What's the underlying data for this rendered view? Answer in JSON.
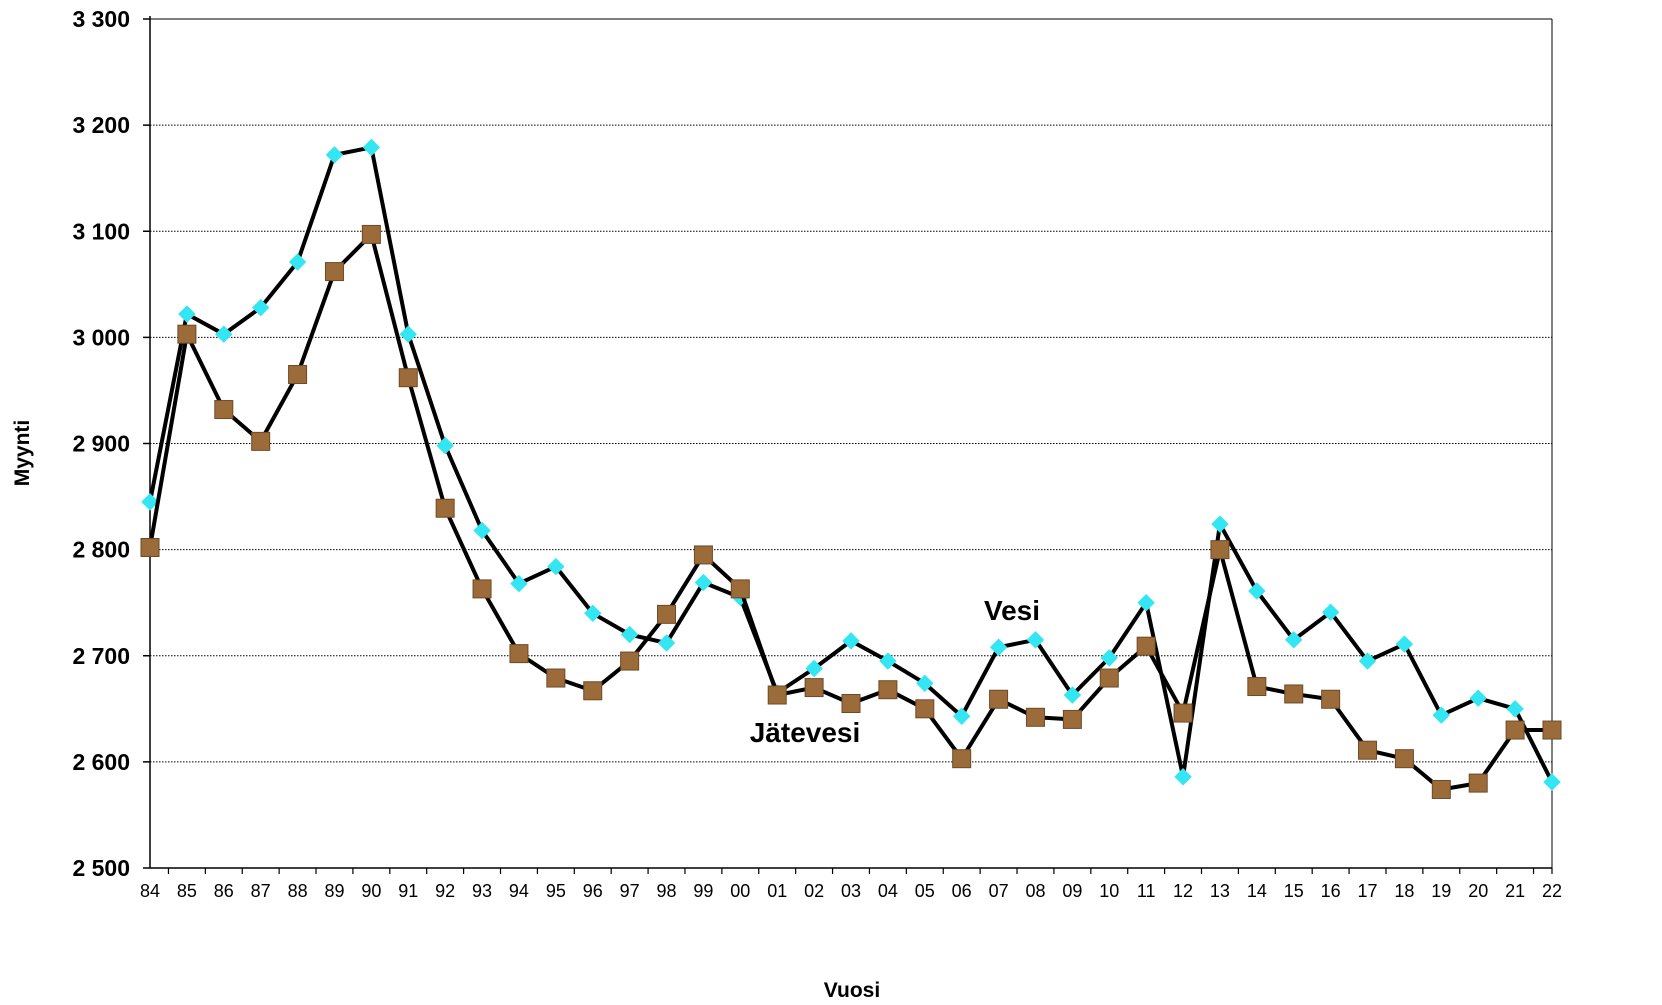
{
  "chart_data": {
    "type": "line",
    "title": "",
    "xlabel": "Vuosi",
    "ylabel": "Myynti",
    "ylim": [
      2500,
      3300
    ],
    "yticks": [
      2500,
      2600,
      2700,
      2800,
      2900,
      3000,
      3100,
      3200,
      3300
    ],
    "ytick_labels": [
      "2 500",
      "2 600",
      "2 700",
      "2 800",
      "2 900",
      "3 000",
      "3 100",
      "3 200",
      "3 300"
    ],
    "grid": "horizontal dotted",
    "legend": "none (series labelled inline)",
    "categories": [
      "84",
      "85",
      "86",
      "87",
      "88",
      "89",
      "90",
      "91",
      "92",
      "93",
      "94",
      "95",
      "96",
      "97",
      "98",
      "99",
      "00",
      "01",
      "02",
      "03",
      "04",
      "05",
      "06",
      "07",
      "08",
      "09",
      "10",
      "11",
      "12",
      "13",
      "14",
      "15",
      "16",
      "17",
      "18",
      "19",
      "20",
      "21",
      "22"
    ],
    "series": [
      {
        "name": "Vesi",
        "marker": "diamond",
        "marker_color": "#33e6f2",
        "line_color": "#000000",
        "values": [
          2845,
          3022,
          3003,
          3028,
          3071,
          3172,
          3179,
          3003,
          2898,
          2818,
          2768,
          2784,
          2740,
          2720,
          2712,
          2769,
          2755,
          2665,
          2688,
          2714,
          2695,
          2674,
          2643,
          2708,
          2715,
          2663,
          2698,
          2750,
          2586,
          2824,
          2761,
          2715,
          2741,
          2695,
          2711,
          2644,
          2660,
          2650,
          2581
        ]
      },
      {
        "name": "Jätevesi",
        "marker": "square",
        "marker_color": "#9c6b3a",
        "line_color": "#000000",
        "values": [
          2802,
          3003,
          2932,
          2902,
          2965,
          3062,
          3097,
          2962,
          2839,
          2763,
          2702,
          2679,
          2667,
          2695,
          2739,
          2795,
          2763,
          2663,
          2670,
          2655,
          2668,
          2650,
          2603,
          2659,
          2642,
          2640,
          2679,
          2709,
          2646,
          2800,
          2671,
          2664,
          2659,
          2611,
          2603,
          2574,
          2580,
          2630,
          2630
        ]
      }
    ],
    "annotations": {
      "vesi_label": "Vesi",
      "jatevesi_label": "Jätevesi"
    }
  }
}
